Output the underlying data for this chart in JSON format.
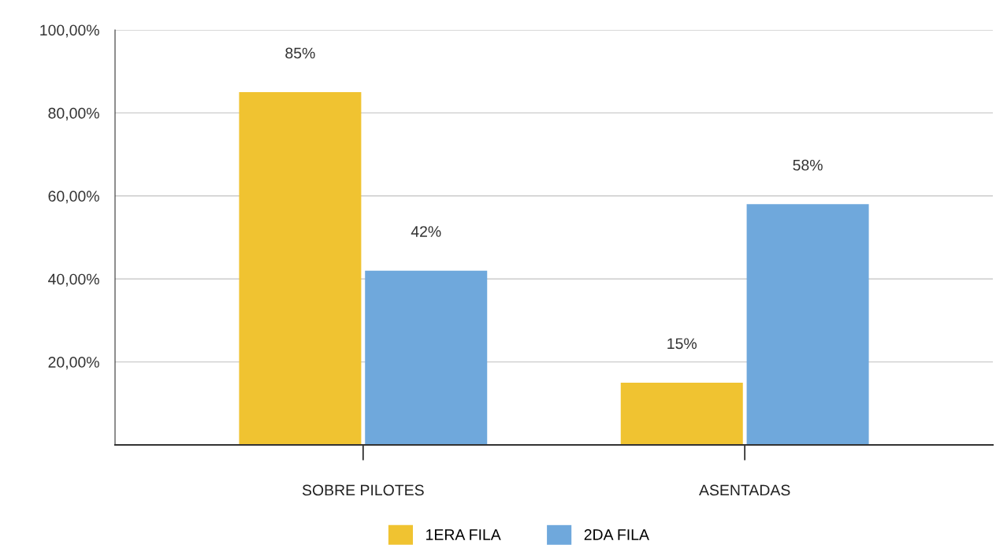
{
  "chart_data": {
    "type": "bar",
    "categories": [
      "SOBRE PILOTES",
      "ASENTADAS"
    ],
    "series": [
      {
        "name": "1ERA FILA",
        "color": "#f0c331",
        "values": [
          85,
          15
        ],
        "value_labels": [
          "85%",
          "15%"
        ]
      },
      {
        "name": "2DA FILA",
        "color": "#6fa8dc",
        "values": [
          42,
          58
        ],
        "value_labels": [
          "42%",
          "58%"
        ]
      }
    ],
    "ylim": [
      0,
      100
    ],
    "yticks": [
      {
        "value": 20,
        "label": "20,00%"
      },
      {
        "value": 40,
        "label": "40,00%"
      },
      {
        "value": 60,
        "label": "60,00%"
      },
      {
        "value": 80,
        "label": "80,00%"
      },
      {
        "value": 100,
        "label": "100,00%"
      }
    ],
    "grid": "y",
    "legend": "bottom"
  }
}
